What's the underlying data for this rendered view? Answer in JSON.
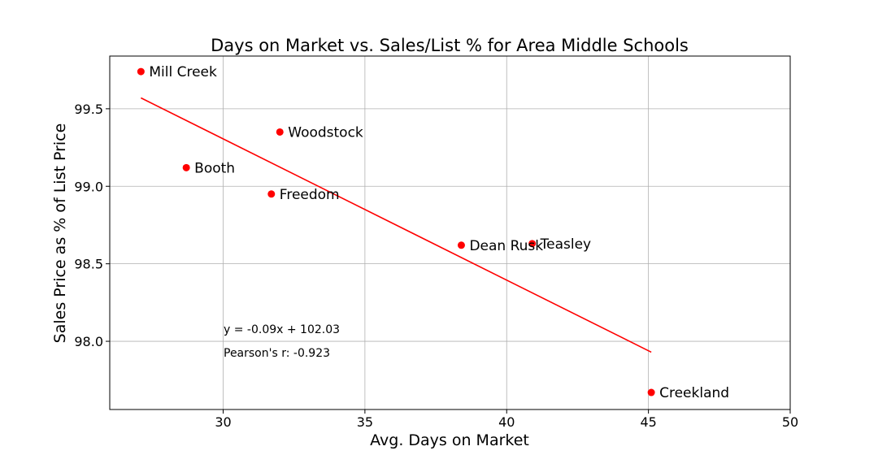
{
  "chart_data": {
    "type": "scatter",
    "title": "Days on Market vs. Sales/List % for Area Middle Schools",
    "xlabel": "Avg. Days on Market",
    "ylabel": "Sales Price as % of List Price",
    "xlim": [
      26,
      50
    ],
    "ylim": [
      97.56,
      99.84
    ],
    "xticks": [
      30,
      35,
      40,
      45,
      50
    ],
    "xtick_labels": [
      "30",
      "35",
      "40",
      "45",
      "50"
    ],
    "yticks": [
      98.0,
      98.5,
      99.0,
      99.5
    ],
    "ytick_labels": [
      "98.0",
      "98.5",
      "99.0",
      "99.5"
    ],
    "grid": true,
    "point_color": "#ff0000",
    "line_color": "#ff0000",
    "points": [
      {
        "label": "Mill Creek",
        "x": 27.1,
        "y": 99.74
      },
      {
        "label": "Woodstock",
        "x": 32.0,
        "y": 99.35
      },
      {
        "label": "Booth",
        "x": 28.7,
        "y": 99.12
      },
      {
        "label": "Freedom",
        "x": 31.7,
        "y": 98.95
      },
      {
        "label": "Dean Rusk",
        "x": 38.4,
        "y": 98.62
      },
      {
        "label": "Teasley",
        "x": 40.9,
        "y": 98.63
      },
      {
        "label": "Creekland",
        "x": 45.1,
        "y": 97.67
      }
    ],
    "trendline": {
      "x": [
        27.1,
        45.1
      ],
      "y": [
        99.57,
        97.93
      ]
    },
    "annotations": [
      "y = -0.09x + 102.03",
      "Pearson's r: -0.923"
    ]
  }
}
